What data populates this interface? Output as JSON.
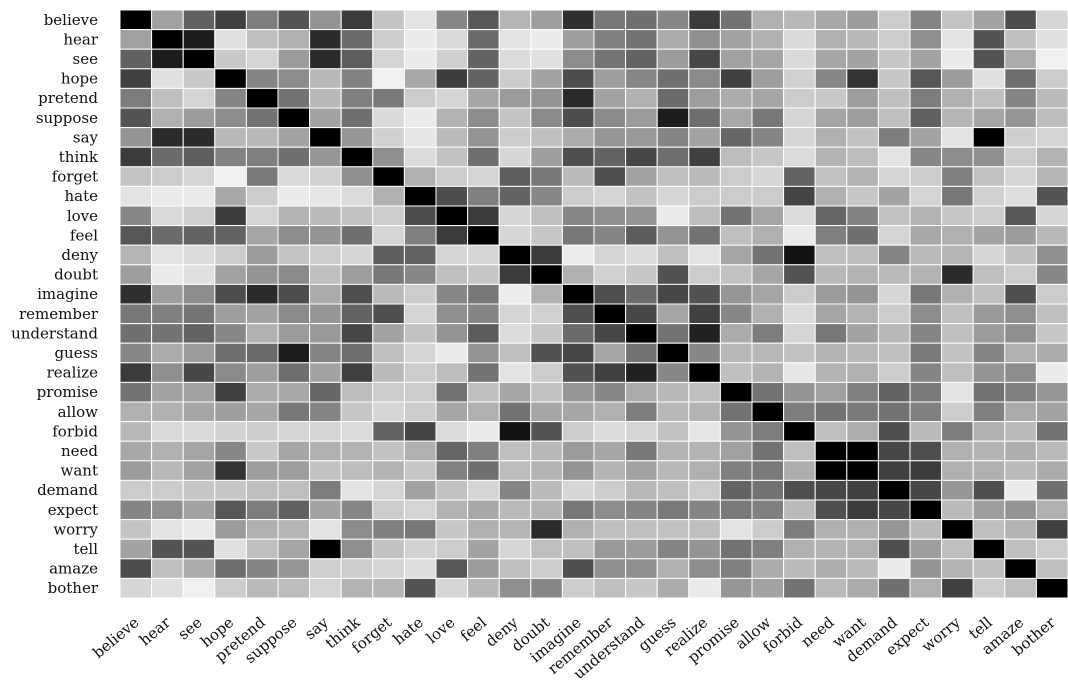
{
  "chart_data": {
    "type": "heatmap",
    "title": "",
    "xlabel": "",
    "ylabel": "",
    "colormap": "grayscale (white = low, black = high)",
    "colors": {
      "low": "#ffffff",
      "high": "#000000",
      "cell_border": "#ffffff"
    },
    "grid": false,
    "legend": "none",
    "labels": [
      "believe",
      "hear",
      "see",
      "hope",
      "pretend",
      "suppose",
      "say",
      "think",
      "forget",
      "hate",
      "love",
      "feel",
      "deny",
      "doubt",
      "imagine",
      "remember",
      "understand",
      "guess",
      "realize",
      "promise",
      "allow",
      "forbid",
      "need",
      "want",
      "demand",
      "expect",
      "worry",
      "tell",
      "amaze",
      "bother"
    ],
    "value_note": "darkness 0 (white) to 1 (black), estimated from cell shading",
    "matrix": [
      [
        1.0,
        0.37,
        0.62,
        0.75,
        0.51,
        0.67,
        0.42,
        0.77,
        0.23,
        0.11,
        0.47,
        0.66,
        0.29,
        0.38,
        0.81,
        0.53,
        0.56,
        0.47,
        0.77,
        0.55,
        0.31,
        0.28,
        0.34,
        0.39,
        0.2,
        0.48,
        0.23,
        0.36,
        0.7,
        0.16
      ],
      [
        0.37,
        1.0,
        0.89,
        0.12,
        0.25,
        0.31,
        0.83,
        0.58,
        0.2,
        0.08,
        0.15,
        0.58,
        0.11,
        0.08,
        0.38,
        0.5,
        0.55,
        0.33,
        0.44,
        0.36,
        0.31,
        0.15,
        0.31,
        0.28,
        0.2,
        0.44,
        0.11,
        0.67,
        0.25,
        0.12
      ],
      [
        0.62,
        0.89,
        1.0,
        0.21,
        0.17,
        0.39,
        0.83,
        0.63,
        0.17,
        0.08,
        0.19,
        0.61,
        0.14,
        0.12,
        0.45,
        0.54,
        0.61,
        0.39,
        0.72,
        0.37,
        0.35,
        0.15,
        0.35,
        0.36,
        0.22,
        0.36,
        0.08,
        0.67,
        0.33,
        0.06
      ],
      [
        0.75,
        0.12,
        0.21,
        1.0,
        0.48,
        0.45,
        0.28,
        0.49,
        0.06,
        0.34,
        0.76,
        0.61,
        0.2,
        0.36,
        0.7,
        0.38,
        0.47,
        0.56,
        0.46,
        0.75,
        0.38,
        0.18,
        0.47,
        0.8,
        0.22,
        0.66,
        0.39,
        0.12,
        0.57,
        0.2
      ],
      [
        0.51,
        0.25,
        0.17,
        0.48,
        1.0,
        0.55,
        0.28,
        0.5,
        0.52,
        0.2,
        0.17,
        0.35,
        0.39,
        0.42,
        0.83,
        0.36,
        0.31,
        0.58,
        0.38,
        0.33,
        0.35,
        0.2,
        0.21,
        0.38,
        0.25,
        0.51,
        0.31,
        0.25,
        0.48,
        0.27
      ],
      [
        0.67,
        0.31,
        0.39,
        0.45,
        0.55,
        1.0,
        0.36,
        0.56,
        0.15,
        0.08,
        0.3,
        0.45,
        0.23,
        0.46,
        0.7,
        0.46,
        0.39,
        0.89,
        0.57,
        0.34,
        0.53,
        0.17,
        0.35,
        0.38,
        0.25,
        0.62,
        0.29,
        0.35,
        0.41,
        0.26
      ],
      [
        0.42,
        0.83,
        0.83,
        0.28,
        0.28,
        0.36,
        1.0,
        0.41,
        0.18,
        0.1,
        0.27,
        0.42,
        0.2,
        0.25,
        0.33,
        0.41,
        0.4,
        0.48,
        0.36,
        0.6,
        0.48,
        0.17,
        0.31,
        0.24,
        0.51,
        0.36,
        0.11,
        1.0,
        0.19,
        0.17
      ],
      [
        0.77,
        0.58,
        0.63,
        0.49,
        0.5,
        0.56,
        0.41,
        1.0,
        0.44,
        0.14,
        0.24,
        0.56,
        0.16,
        0.38,
        0.69,
        0.61,
        0.72,
        0.57,
        0.75,
        0.26,
        0.22,
        0.14,
        0.3,
        0.26,
        0.11,
        0.47,
        0.45,
        0.44,
        0.2,
        0.3
      ],
      [
        0.23,
        0.2,
        0.17,
        0.06,
        0.52,
        0.15,
        0.18,
        0.44,
        1.0,
        0.31,
        0.2,
        0.17,
        0.63,
        0.53,
        0.27,
        0.69,
        0.36,
        0.25,
        0.27,
        0.2,
        0.16,
        0.61,
        0.24,
        0.3,
        0.17,
        0.2,
        0.5,
        0.24,
        0.17,
        0.29
      ],
      [
        0.11,
        0.08,
        0.08,
        0.34,
        0.2,
        0.08,
        0.1,
        0.14,
        0.31,
        1.0,
        0.7,
        0.5,
        0.61,
        0.47,
        0.2,
        0.17,
        0.24,
        0.16,
        0.2,
        0.2,
        0.2,
        0.73,
        0.31,
        0.22,
        0.36,
        0.17,
        0.53,
        0.18,
        0.13,
        0.67
      ],
      [
        0.47,
        0.15,
        0.19,
        0.76,
        0.17,
        0.3,
        0.27,
        0.24,
        0.2,
        0.7,
        1.0,
        0.77,
        0.16,
        0.25,
        0.47,
        0.44,
        0.42,
        0.08,
        0.26,
        0.55,
        0.35,
        0.14,
        0.6,
        0.49,
        0.24,
        0.3,
        0.22,
        0.2,
        0.66,
        0.16
      ],
      [
        0.66,
        0.58,
        0.61,
        0.61,
        0.35,
        0.45,
        0.42,
        0.56,
        0.17,
        0.5,
        0.77,
        1.0,
        0.16,
        0.22,
        0.53,
        0.48,
        0.64,
        0.42,
        0.55,
        0.25,
        0.31,
        0.08,
        0.5,
        0.56,
        0.17,
        0.34,
        0.31,
        0.36,
        0.39,
        0.28
      ],
      [
        0.29,
        0.11,
        0.14,
        0.2,
        0.39,
        0.23,
        0.2,
        0.16,
        0.63,
        0.61,
        0.16,
        0.16,
        1.0,
        0.77,
        0.07,
        0.17,
        0.14,
        0.25,
        0.11,
        0.35,
        0.55,
        0.93,
        0.25,
        0.26,
        0.48,
        0.27,
        0.29,
        0.16,
        0.25,
        0.44
      ],
      [
        0.38,
        0.08,
        0.12,
        0.36,
        0.42,
        0.46,
        0.25,
        0.38,
        0.53,
        0.47,
        0.25,
        0.22,
        0.77,
        1.0,
        0.31,
        0.18,
        0.22,
        0.68,
        0.2,
        0.24,
        0.35,
        0.67,
        0.28,
        0.3,
        0.27,
        0.3,
        0.83,
        0.25,
        0.2,
        0.47
      ],
      [
        0.81,
        0.38,
        0.45,
        0.7,
        0.83,
        0.7,
        0.33,
        0.69,
        0.27,
        0.2,
        0.47,
        0.53,
        0.07,
        0.31,
        1.0,
        0.69,
        0.58,
        0.72,
        0.68,
        0.41,
        0.35,
        0.2,
        0.39,
        0.42,
        0.16,
        0.53,
        0.31,
        0.25,
        0.69,
        0.2
      ],
      [
        0.53,
        0.5,
        0.54,
        0.38,
        0.36,
        0.46,
        0.41,
        0.61,
        0.69,
        0.17,
        0.44,
        0.48,
        0.17,
        0.18,
        0.69,
        1.0,
        0.72,
        0.35,
        0.75,
        0.47,
        0.31,
        0.14,
        0.35,
        0.3,
        0.2,
        0.45,
        0.25,
        0.4,
        0.44,
        0.25
      ],
      [
        0.56,
        0.55,
        0.61,
        0.47,
        0.31,
        0.39,
        0.4,
        0.72,
        0.36,
        0.24,
        0.42,
        0.64,
        0.14,
        0.22,
        0.58,
        0.72,
        1.0,
        0.55,
        0.87,
        0.33,
        0.51,
        0.17,
        0.53,
        0.36,
        0.28,
        0.48,
        0.25,
        0.39,
        0.44,
        0.22
      ],
      [
        0.47,
        0.33,
        0.39,
        0.56,
        0.58,
        0.89,
        0.48,
        0.57,
        0.25,
        0.16,
        0.08,
        0.42,
        0.25,
        0.68,
        0.72,
        0.35,
        0.55,
        1.0,
        0.47,
        0.28,
        0.28,
        0.24,
        0.3,
        0.28,
        0.25,
        0.52,
        0.24,
        0.48,
        0.31,
        0.33
      ],
      [
        0.77,
        0.44,
        0.72,
        0.46,
        0.38,
        0.57,
        0.36,
        0.75,
        0.27,
        0.2,
        0.26,
        0.55,
        0.11,
        0.2,
        0.68,
        0.75,
        0.87,
        0.47,
        1.0,
        0.25,
        0.3,
        0.1,
        0.3,
        0.31,
        0.2,
        0.48,
        0.25,
        0.42,
        0.45,
        0.08
      ],
      [
        0.55,
        0.36,
        0.37,
        0.75,
        0.33,
        0.34,
        0.6,
        0.26,
        0.2,
        0.2,
        0.55,
        0.25,
        0.35,
        0.24,
        0.41,
        0.47,
        0.33,
        0.28,
        0.25,
        1.0,
        0.55,
        0.42,
        0.37,
        0.5,
        0.61,
        0.52,
        0.11,
        0.55,
        0.5,
        0.41
      ],
      [
        0.31,
        0.31,
        0.35,
        0.38,
        0.35,
        0.53,
        0.48,
        0.22,
        0.16,
        0.2,
        0.35,
        0.31,
        0.55,
        0.35,
        0.35,
        0.31,
        0.51,
        0.28,
        0.3,
        0.55,
        1.0,
        0.51,
        0.55,
        0.52,
        0.55,
        0.5,
        0.2,
        0.5,
        0.33,
        0.36
      ],
      [
        0.28,
        0.15,
        0.15,
        0.18,
        0.2,
        0.17,
        0.17,
        0.14,
        0.61,
        0.73,
        0.14,
        0.08,
        0.93,
        0.67,
        0.2,
        0.14,
        0.17,
        0.24,
        0.1,
        0.42,
        0.51,
        1.0,
        0.25,
        0.32,
        0.69,
        0.27,
        0.51,
        0.31,
        0.27,
        0.55
      ],
      [
        0.34,
        0.31,
        0.35,
        0.47,
        0.21,
        0.35,
        0.31,
        0.3,
        0.24,
        0.31,
        0.6,
        0.5,
        0.25,
        0.28,
        0.39,
        0.35,
        0.53,
        0.3,
        0.3,
        0.37,
        0.55,
        0.25,
        1.0,
        1.0,
        0.72,
        0.69,
        0.31,
        0.3,
        0.32,
        0.27
      ],
      [
        0.39,
        0.28,
        0.36,
        0.8,
        0.38,
        0.38,
        0.24,
        0.26,
        0.3,
        0.22,
        0.49,
        0.56,
        0.26,
        0.3,
        0.42,
        0.3,
        0.36,
        0.28,
        0.31,
        0.5,
        0.52,
        0.32,
        1.0,
        1.0,
        0.75,
        0.77,
        0.31,
        0.31,
        0.27,
        0.33
      ],
      [
        0.2,
        0.2,
        0.22,
        0.22,
        0.25,
        0.25,
        0.51,
        0.11,
        0.17,
        0.36,
        0.24,
        0.17,
        0.48,
        0.27,
        0.16,
        0.2,
        0.28,
        0.25,
        0.2,
        0.61,
        0.55,
        0.69,
        0.72,
        0.75,
        1.0,
        0.72,
        0.41,
        0.69,
        0.08,
        0.56
      ],
      [
        0.48,
        0.44,
        0.36,
        0.66,
        0.51,
        0.62,
        0.36,
        0.47,
        0.2,
        0.17,
        0.3,
        0.34,
        0.27,
        0.3,
        0.53,
        0.45,
        0.48,
        0.52,
        0.48,
        0.52,
        0.5,
        0.27,
        0.69,
        0.77,
        0.72,
        1.0,
        0.27,
        0.38,
        0.42,
        0.31
      ],
      [
        0.23,
        0.11,
        0.08,
        0.39,
        0.31,
        0.29,
        0.11,
        0.45,
        0.5,
        0.53,
        0.22,
        0.31,
        0.29,
        0.83,
        0.31,
        0.25,
        0.25,
        0.24,
        0.25,
        0.11,
        0.2,
        0.51,
        0.31,
        0.31,
        0.41,
        0.27,
        1.0,
        0.25,
        0.3,
        0.75
      ],
      [
        0.36,
        0.67,
        0.67,
        0.12,
        0.25,
        0.35,
        1.0,
        0.44,
        0.24,
        0.18,
        0.2,
        0.36,
        0.16,
        0.25,
        0.25,
        0.4,
        0.39,
        0.48,
        0.42,
        0.55,
        0.5,
        0.31,
        0.3,
        0.31,
        0.69,
        0.38,
        0.25,
        1.0,
        0.25,
        0.2
      ],
      [
        0.7,
        0.25,
        0.33,
        0.57,
        0.48,
        0.41,
        0.19,
        0.2,
        0.17,
        0.13,
        0.66,
        0.39,
        0.25,
        0.2,
        0.69,
        0.44,
        0.44,
        0.31,
        0.45,
        0.5,
        0.33,
        0.27,
        0.32,
        0.27,
        0.08,
        0.42,
        0.3,
        0.25,
        1.0,
        0.25
      ],
      [
        0.16,
        0.12,
        0.06,
        0.2,
        0.27,
        0.26,
        0.17,
        0.3,
        0.29,
        0.67,
        0.16,
        0.28,
        0.44,
        0.47,
        0.2,
        0.25,
        0.22,
        0.33,
        0.08,
        0.41,
        0.36,
        0.55,
        0.27,
        0.33,
        0.56,
        0.31,
        0.75,
        0.2,
        0.25,
        1.0
      ]
    ]
  }
}
